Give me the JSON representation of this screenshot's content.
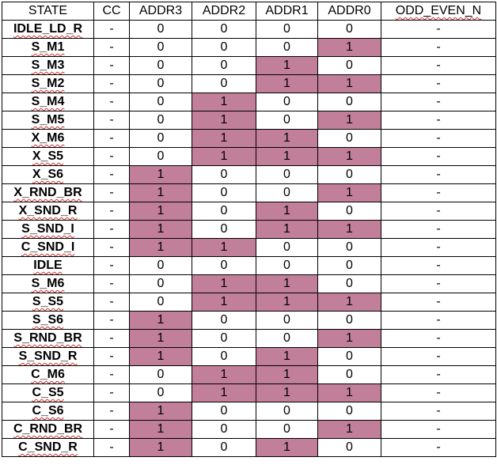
{
  "columns": [
    "STATE",
    "CC",
    "ADDR3",
    "ADDR2",
    "ADDR1",
    "ADDR0",
    "ODD_EVEN_N"
  ],
  "highlight_color": "#c17f99",
  "rows": [
    {
      "state": "IDLE_LD_R",
      "cc": "-",
      "addr3": "0",
      "addr2": "0",
      "addr1": "0",
      "addr0": "0",
      "odd_even_n": "-"
    },
    {
      "state": "S_M1",
      "cc": "-",
      "addr3": "0",
      "addr2": "0",
      "addr1": "0",
      "addr0": "1",
      "odd_even_n": "-"
    },
    {
      "state": "S_M3",
      "cc": "-",
      "addr3": "0",
      "addr2": "0",
      "addr1": "1",
      "addr0": "0",
      "odd_even_n": "-"
    },
    {
      "state": "S_M2",
      "cc": "-",
      "addr3": "0",
      "addr2": "0",
      "addr1": "1",
      "addr0": "1",
      "odd_even_n": "-"
    },
    {
      "state": "S_M4",
      "cc": "-",
      "addr3": "0",
      "addr2": "1",
      "addr1": "0",
      "addr0": "0",
      "odd_even_n": "-"
    },
    {
      "state": "S_M5",
      "cc": "-",
      "addr3": "0",
      "addr2": "1",
      "addr1": "0",
      "addr0": "1",
      "odd_even_n": "-"
    },
    {
      "state": "X_M6",
      "cc": "-",
      "addr3": "0",
      "addr2": "1",
      "addr1": "1",
      "addr0": "0",
      "odd_even_n": "-"
    },
    {
      "state": "X_S5",
      "cc": "-",
      "addr3": "0",
      "addr2": "1",
      "addr1": "1",
      "addr0": "1",
      "odd_even_n": "-"
    },
    {
      "state": "X_S6",
      "cc": "-",
      "addr3": "1",
      "addr2": "0",
      "addr1": "0",
      "addr0": "0",
      "odd_even_n": "-"
    },
    {
      "state": "X_RND_BR",
      "cc": "-",
      "addr3": "1",
      "addr2": "0",
      "addr1": "0",
      "addr0": "1",
      "odd_even_n": "-"
    },
    {
      "state": "X_SND_R",
      "cc": "-",
      "addr3": "1",
      "addr2": "0",
      "addr1": "1",
      "addr0": "0",
      "odd_even_n": "-"
    },
    {
      "state": "S_SND_I",
      "cc": "-",
      "addr3": "1",
      "addr2": "0",
      "addr1": "1",
      "addr0": "1",
      "odd_even_n": "-"
    },
    {
      "state": "C_SND_I",
      "cc": "-",
      "addr3": "1",
      "addr2": "1",
      "addr1": "0",
      "addr0": "0",
      "odd_even_n": "-"
    },
    {
      "state": "IDLE",
      "cc": "-",
      "addr3": "0",
      "addr2": "0",
      "addr1": "0",
      "addr0": "0",
      "odd_even_n": "-"
    },
    {
      "state": "S_M6",
      "cc": "-",
      "addr3": "0",
      "addr2": "1",
      "addr1": "1",
      "addr0": "0",
      "odd_even_n": "-"
    },
    {
      "state": "S_S5",
      "cc": "-",
      "addr3": "0",
      "addr2": "1",
      "addr1": "1",
      "addr0": "1",
      "odd_even_n": "-"
    },
    {
      "state": "S_S6",
      "cc": "-",
      "addr3": "1",
      "addr2": "0",
      "addr1": "0",
      "addr0": "0",
      "odd_even_n": "-"
    },
    {
      "state": "S_RND_BR",
      "cc": "-",
      "addr3": "1",
      "addr2": "0",
      "addr1": "0",
      "addr0": "1",
      "odd_even_n": "-"
    },
    {
      "state": "S_SND_R",
      "cc": "-",
      "addr3": "1",
      "addr2": "0",
      "addr1": "1",
      "addr0": "0",
      "odd_even_n": "-"
    },
    {
      "state": "C_M6",
      "cc": "-",
      "addr3": "0",
      "addr2": "1",
      "addr1": "1",
      "addr0": "0",
      "odd_even_n": "-"
    },
    {
      "state": "C_S5",
      "cc": "-",
      "addr3": "0",
      "addr2": "1",
      "addr1": "1",
      "addr0": "1",
      "odd_even_n": "-"
    },
    {
      "state": "C_S6",
      "cc": "-",
      "addr3": "1",
      "addr2": "0",
      "addr1": "0",
      "addr0": "0",
      "odd_even_n": "-"
    },
    {
      "state": "C_RND_BR",
      "cc": "-",
      "addr3": "1",
      "addr2": "0",
      "addr1": "0",
      "addr0": "1",
      "odd_even_n": "-"
    },
    {
      "state": "C_SND_R",
      "cc": "-",
      "addr3": "1",
      "addr2": "0",
      "addr1": "1",
      "addr0": "0",
      "odd_even_n": "-"
    }
  ]
}
